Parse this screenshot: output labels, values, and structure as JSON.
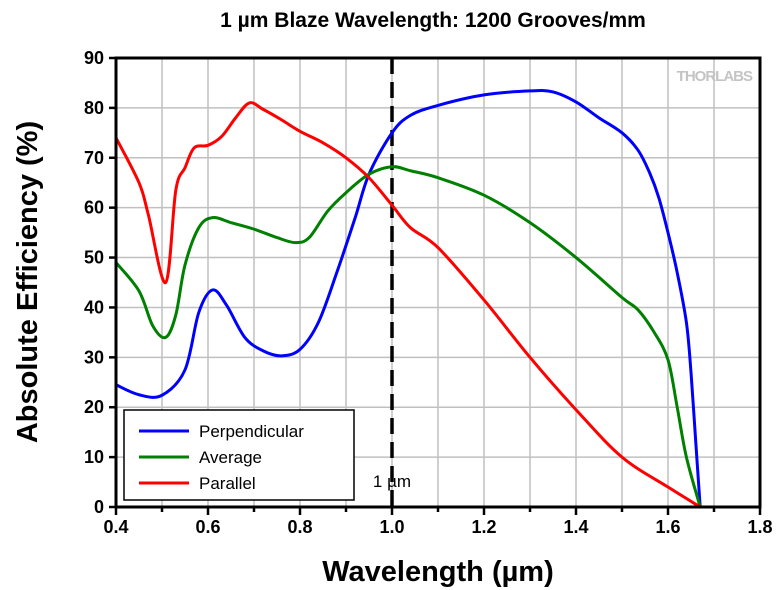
{
  "chart_data": {
    "type": "line",
    "title": "1 µm Blaze Wavelength: 1200 Grooves/mm",
    "xlabel": "Wavelength (µm)",
    "ylabel": "Absolute Efficiency (%)",
    "xlim": [
      0.4,
      1.8
    ],
    "ylim": [
      0,
      90
    ],
    "xticks": [
      "0.4",
      "0.6",
      "0.8",
      "1.0",
      "1.2",
      "1.4",
      "1.6",
      "1.8"
    ],
    "xtick_values": [
      0.4,
      0.6,
      0.8,
      1.0,
      1.2,
      1.4,
      1.6,
      1.8
    ],
    "yticks": [
      "0",
      "10",
      "20",
      "30",
      "40",
      "50",
      "60",
      "70",
      "80",
      "90"
    ],
    "ytick_values": [
      0,
      10,
      20,
      30,
      40,
      50,
      60,
      70,
      80,
      90
    ],
    "grid": true,
    "legend_position": "bottom-left",
    "annotation": {
      "x": 1.0,
      "label": "1 µm",
      "style": "dashed vertical line"
    },
    "logo_text": "THORLABS",
    "series": [
      {
        "name": "Perpendicular",
        "color": "#0000ff",
        "x": [
          0.4,
          0.45,
          0.5,
          0.55,
          0.58,
          0.61,
          0.64,
          0.68,
          0.72,
          0.76,
          0.8,
          0.84,
          0.88,
          0.92,
          0.95,
          1.0,
          1.04,
          1.1,
          1.2,
          1.3,
          1.35,
          1.4,
          1.45,
          1.5,
          1.535,
          1.56,
          1.58,
          1.6,
          1.62,
          1.64,
          1.65,
          1.66,
          1.67
        ],
        "y": [
          24.5,
          22.5,
          22.4,
          27.5,
          39,
          43.5,
          40.5,
          34,
          31.3,
          30.3,
          31.6,
          37,
          47,
          58,
          66.7,
          75,
          78.5,
          80.5,
          82.6,
          83.4,
          83.2,
          81.2,
          78,
          75,
          71.5,
          67,
          62,
          55,
          47,
          37,
          27,
          13.5,
          0
        ]
      },
      {
        "name": "Average",
        "color": "#008000",
        "x": [
          0.4,
          0.45,
          0.48,
          0.508,
          0.53,
          0.55,
          0.58,
          0.61,
          0.65,
          0.7,
          0.75,
          0.79,
          0.82,
          0.86,
          0.9,
          0.95,
          1.0,
          1.04,
          1.1,
          1.2,
          1.3,
          1.4,
          1.5,
          1.535,
          1.57,
          1.6,
          1.62,
          1.64,
          1.67
        ],
        "y": [
          49,
          43.3,
          36.3,
          34,
          38.5,
          48.5,
          56,
          58,
          57,
          55.7,
          54,
          53,
          54,
          59.3,
          63,
          66.7,
          68.2,
          67.4,
          66,
          62.5,
          57,
          50,
          42,
          39.5,
          35,
          29.5,
          20,
          10,
          0
        ]
      },
      {
        "name": "Parallel",
        "color": "#ff0000",
        "x": [
          0.4,
          0.45,
          0.47,
          0.508,
          0.53,
          0.55,
          0.57,
          0.6,
          0.63,
          0.66,
          0.69,
          0.72,
          0.76,
          0.8,
          0.85,
          0.9,
          0.95,
          1.0,
          1.04,
          1.1,
          1.2,
          1.3,
          1.4,
          1.5,
          1.6,
          1.67
        ],
        "y": [
          74,
          65,
          58.7,
          45,
          63.5,
          68,
          72,
          72.5,
          74.3,
          78,
          81,
          79.7,
          77.6,
          75.3,
          73,
          70,
          66,
          60.5,
          56,
          52,
          41.5,
          30,
          19.5,
          10,
          4,
          0
        ]
      }
    ]
  }
}
